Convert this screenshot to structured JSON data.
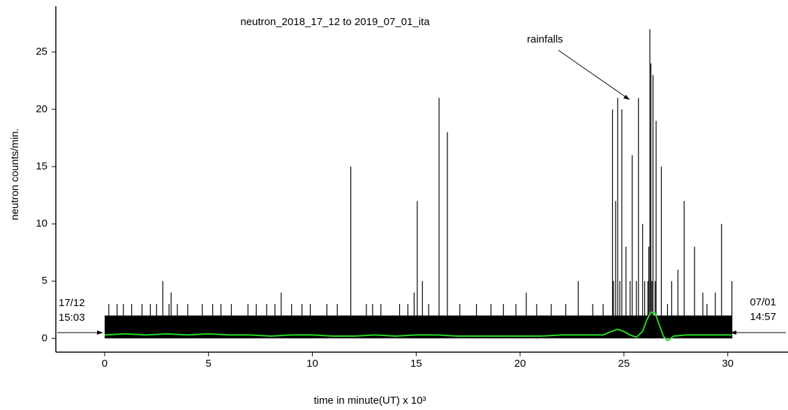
{
  "chart_data": {
    "type": "needle",
    "title": "neutron_2018_17_12 to 2019_07_01_ita",
    "x_label": "time in minute(UT) x 10³",
    "y_label": "neutron counts/min.",
    "annotations": {
      "rainfalls": "rainfalls",
      "start_date": "17/12",
      "start_time": "15:03",
      "end_date": "07/01",
      "end_time": "14:57"
    },
    "xlim": [
      -2.35,
      32.9
    ],
    "ylim": [
      -1.2,
      29
    ],
    "xticks": [
      0,
      5,
      10,
      15,
      20,
      25,
      30
    ],
    "yticks": [
      0,
      5,
      10,
      15,
      20,
      25
    ],
    "series": [
      {
        "style": "area",
        "color": "#000000",
        "x": [
          0,
          30.2
        ],
        "values": [
          2,
          2
        ]
      },
      {
        "style": "needle",
        "color": "#000000",
        "x": [
          0.2,
          0.6,
          0.9,
          1.3,
          1.8,
          2.2,
          2.5,
          2.8,
          3.1,
          3.2,
          3.5,
          4.0,
          4.7,
          5.2,
          5.6,
          6.1,
          6.9,
          7.3,
          7.8,
          8.2,
          8.5,
          9.0,
          9.5,
          9.9,
          10.7,
          11.2,
          11.85,
          12.6,
          12.9,
          13.3,
          14.2,
          14.6,
          14.9,
          15.05,
          15.3,
          15.6,
          16.1,
          16.5,
          17.1,
          17.9,
          18.6,
          19.2,
          19.8,
          20.3,
          20.8,
          21.5,
          22.2,
          22.8,
          23.5,
          24.0,
          24.45,
          24.5,
          24.6,
          24.7,
          24.8,
          24.9,
          25.1,
          25.3,
          25.4,
          25.6,
          25.7,
          25.9,
          26.0,
          26.15,
          26.2,
          26.25,
          26.3,
          26.35,
          26.4,
          26.5,
          26.55,
          26.8,
          27.1,
          27.3,
          27.6,
          27.9,
          28.4,
          28.8,
          29.0,
          29.4,
          29.7,
          30.2
        ],
        "values": [
          3,
          3,
          3,
          3,
          3,
          3,
          3,
          5,
          3,
          4,
          3,
          3,
          3,
          3,
          3,
          3,
          3,
          3,
          3,
          3,
          4,
          3,
          3,
          3,
          3,
          3,
          15,
          3,
          3,
          3,
          3,
          3,
          4,
          12,
          5,
          3,
          21,
          18,
          3,
          3,
          3,
          3,
          3,
          4,
          3,
          3,
          3,
          5,
          3,
          3,
          20,
          5,
          12,
          21,
          5,
          20,
          8,
          5,
          16,
          5,
          21,
          10,
          5,
          5,
          8,
          27,
          24,
          5,
          23,
          5,
          19,
          15,
          3,
          5,
          6,
          12,
          8,
          4,
          3,
          4,
          10,
          5
        ]
      },
      {
        "style": "line",
        "color": "#22dd22",
        "x": [
          0,
          1,
          2,
          3,
          4,
          5,
          6,
          7,
          8,
          9,
          10,
          11,
          12,
          13,
          14,
          15,
          16,
          17,
          18,
          19,
          20,
          21,
          22,
          23,
          24,
          24.4,
          24.7,
          25.0,
          25.3,
          25.6,
          25.9,
          26.1,
          26.3,
          26.5,
          26.7,
          26.9,
          27.1,
          27.4,
          28,
          29,
          30.2
        ],
        "values": [
          0.3,
          0.4,
          0.3,
          0.4,
          0.3,
          0.4,
          0.3,
          0.3,
          0.2,
          0.3,
          0.3,
          0.2,
          0.2,
          0.3,
          0.2,
          0.3,
          0.3,
          0.2,
          0.2,
          0.2,
          0.2,
          0.2,
          0.3,
          0.3,
          0.3,
          0.6,
          0.8,
          0.6,
          0.3,
          0.1,
          0.6,
          1.6,
          2.3,
          2.2,
          1.2,
          0.2,
          -0.2,
          0.2,
          0.3,
          0.3,
          0.3
        ]
      }
    ]
  }
}
